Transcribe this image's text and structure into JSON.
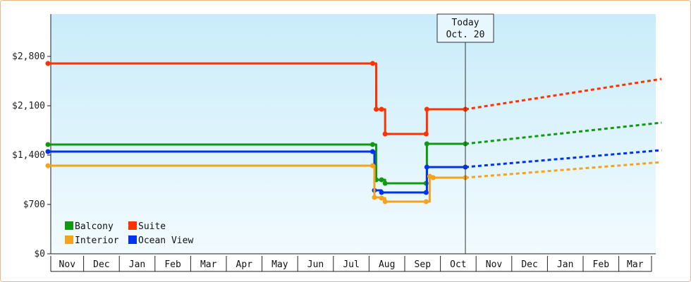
{
  "chart_data": {
    "type": "line",
    "title": "",
    "xlabel": "",
    "ylabel": "",
    "ylim": [
      0,
      3400
    ],
    "y_ticks": [
      {
        "value": 0,
        "label": "$0"
      },
      {
        "value": 700,
        "label": "$700"
      },
      {
        "value": 1400,
        "label": "$1,400"
      },
      {
        "value": 2100,
        "label": "$2,100"
      },
      {
        "value": 2800,
        "label": "$2,800"
      }
    ],
    "months": [
      "Nov",
      "Dec",
      "Jan",
      "Feb",
      "Mar",
      "Apr",
      "May",
      "Jun",
      "Jul",
      "Aug",
      "Sep",
      "Oct",
      "Nov",
      "Dec",
      "Jan",
      "Feb",
      "Mar"
    ],
    "today_marker": {
      "line1": "Today",
      "line2": "Oct. 20",
      "x": 11.7
    },
    "grid": false,
    "legend_placement": "bottom-left",
    "series": [
      {
        "name": "Suite",
        "color": "#ff3300",
        "points": [
          [
            0,
            2700
          ],
          [
            9.1,
            2700
          ],
          [
            9.2,
            2050
          ],
          [
            9.35,
            2050
          ],
          [
            9.45,
            1700
          ],
          [
            10.6,
            1700
          ],
          [
            10.62,
            2050
          ],
          [
            11.7,
            2050
          ]
        ],
        "projection": [
          [
            11.7,
            2050
          ],
          [
            17.2,
            2480
          ]
        ]
      },
      {
        "name": "Balcony",
        "color": "#119911",
        "points": [
          [
            0,
            1550
          ],
          [
            9.1,
            1550
          ],
          [
            9.2,
            1050
          ],
          [
            9.35,
            1050
          ],
          [
            9.45,
            1000
          ],
          [
            10.6,
            1000
          ],
          [
            10.62,
            1560
          ],
          [
            11.7,
            1560
          ]
        ],
        "projection": [
          [
            11.7,
            1560
          ],
          [
            17.2,
            1860
          ]
        ]
      },
      {
        "name": "Ocean View",
        "color": "#0033ee",
        "points": [
          [
            0,
            1450
          ],
          [
            9.1,
            1450
          ],
          [
            9.15,
            900
          ],
          [
            9.35,
            870
          ],
          [
            10.6,
            870
          ],
          [
            10.62,
            1230
          ],
          [
            11.7,
            1230
          ]
        ],
        "projection": [
          [
            11.7,
            1230
          ],
          [
            17.2,
            1470
          ]
        ]
      },
      {
        "name": "Interior",
        "color": "#f5a31a",
        "points": [
          [
            0,
            1250
          ],
          [
            9.1,
            1250
          ],
          [
            9.15,
            800
          ],
          [
            9.35,
            790
          ],
          [
            9.45,
            740
          ],
          [
            10.6,
            740
          ],
          [
            10.7,
            1100
          ],
          [
            10.8,
            1080
          ],
          [
            11.7,
            1080
          ]
        ],
        "projection": [
          [
            11.7,
            1080
          ],
          [
            17.2,
            1300
          ]
        ]
      }
    ],
    "legend": [
      {
        "label": "Balcony",
        "color": "#119911"
      },
      {
        "label": "Suite",
        "color": "#ff3300"
      },
      {
        "label": "Interior",
        "color": "#f5a31a"
      },
      {
        "label": "Ocean View",
        "color": "#0033ee"
      }
    ]
  }
}
